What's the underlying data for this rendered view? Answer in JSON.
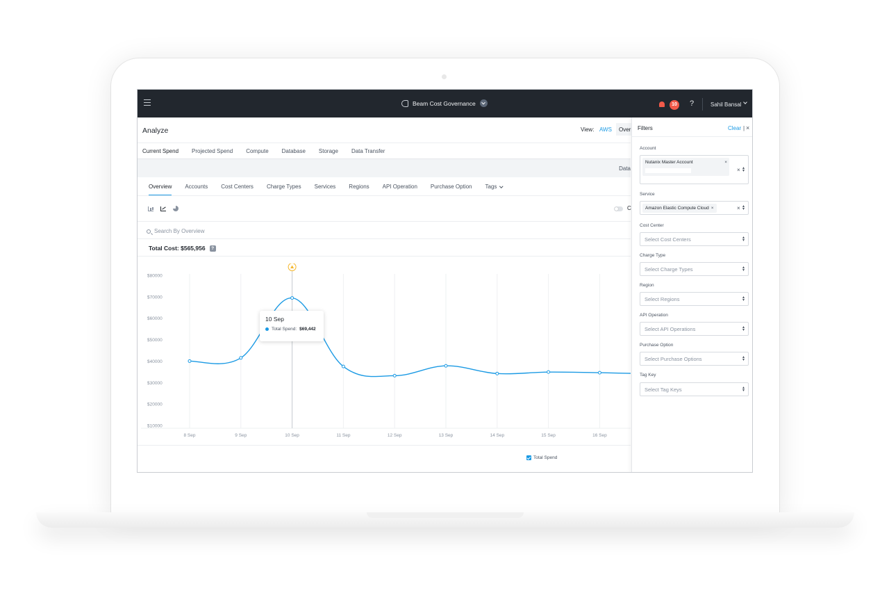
{
  "app": {
    "title": "Beam Cost Governance",
    "notifications": "10",
    "user": "Sahil Bansal",
    "help": "?"
  },
  "page": {
    "title": "Analyze",
    "view_label": "View:",
    "view_cloud": "AWS",
    "view_mode": "Over",
    "date_label": "Data"
  },
  "tabs_primary": [
    "Current Spend",
    "Projected Spend",
    "Compute",
    "Database",
    "Storage",
    "Data Transfer"
  ],
  "tabs_secondary": [
    "Overview",
    "Accounts",
    "Cost Centers",
    "Charge Types",
    "Services",
    "Regions",
    "API Operation",
    "Purchase Option",
    "Tags"
  ],
  "toggle_label": "C",
  "search": {
    "placeholder": "Search By Overview"
  },
  "summary": {
    "total_cost": "Total Cost: $565,956",
    "info": "?"
  },
  "tooltip": {
    "date": "10 Sep",
    "label": "Total Spend:",
    "value": "$69,442"
  },
  "chart_data": {
    "type": "line",
    "categories": [
      "8 Sep",
      "9 Sep",
      "10 Sep",
      "11 Sep",
      "12 Sep",
      "13 Sep",
      "14 Sep",
      "15 Sep",
      "16 Sep"
    ],
    "series": [
      {
        "name": "Total Spend",
        "values": [
          40000,
          41500,
          69442,
          37500,
          33200,
          37800,
          34200,
          34900,
          34600
        ]
      }
    ],
    "y_ticks": [
      "$80000",
      "$70000",
      "$60000",
      "$50000",
      "$40000",
      "$30000",
      "$20000",
      "$10000"
    ],
    "ylim": [
      10000,
      80000
    ],
    "grid": "vertical",
    "color": "#1b9ae4"
  },
  "legend": {
    "label": "Total Spend"
  },
  "filters": {
    "title": "Filters",
    "clear": "Clear",
    "separator": "|",
    "close": "×",
    "account": {
      "label": "Account",
      "chip": "Nutanix Master Account"
    },
    "service": {
      "label": "Service",
      "chip": "Amazon Elastic Compute Cloud"
    },
    "cost_center": {
      "label": "Cost Center",
      "placeholder": "Select Cost Centers"
    },
    "charge_type": {
      "label": "Charge Type",
      "placeholder": "Select Charge Types"
    },
    "region": {
      "label": "Region",
      "placeholder": "Select Regions"
    },
    "api_operation": {
      "label": "API Operation",
      "placeholder": "Select API Operations"
    },
    "purchase_option": {
      "label": "Purchase Option",
      "placeholder": "Select Purchase Options"
    },
    "tag_key": {
      "label": "Tag Key",
      "placeholder": "Select Tag Keys"
    }
  },
  "icons": [
    "menu-icon",
    "speaker-icon",
    "chevron-down-icon",
    "bell-icon",
    "help-icon",
    "bar-chart-icon",
    "line-chart-icon",
    "pie-chart-icon",
    "search-icon",
    "info-icon",
    "close-icon",
    "alert-icon"
  ]
}
